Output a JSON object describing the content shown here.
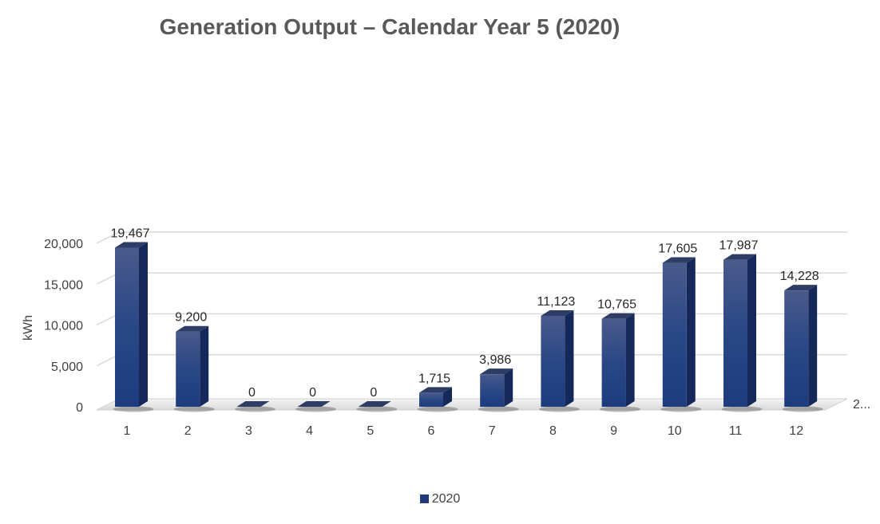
{
  "chart_data": {
    "type": "bar",
    "title": "Generation Output – Calendar Year 5 (2020)",
    "ylabel": "kWh",
    "xlabel": "",
    "categories": [
      "1",
      "2",
      "3",
      "4",
      "5",
      "6",
      "7",
      "8",
      "9",
      "10",
      "11",
      "12"
    ],
    "series": [
      {
        "name": "2020",
        "values": [
          19467,
          9200,
          0,
          0,
          0,
          1715,
          3986,
          11123,
          10765,
          17605,
          17987,
          14228
        ],
        "value_labels": [
          "19,467",
          "9,200",
          "0",
          "0",
          "0",
          "1,715",
          "3,986",
          "11,123",
          "10,765",
          "17,605",
          "17,987",
          "14,228"
        ],
        "color": "#1f3a7a"
      }
    ],
    "ylim": [
      0,
      20000
    ],
    "y_ticks": [
      "0",
      "5,000",
      "10,000",
      "15,000",
      "20,000"
    ],
    "depth_axis_label": "2...",
    "grid": true,
    "style": "3d-column",
    "legend_position": "bottom"
  }
}
